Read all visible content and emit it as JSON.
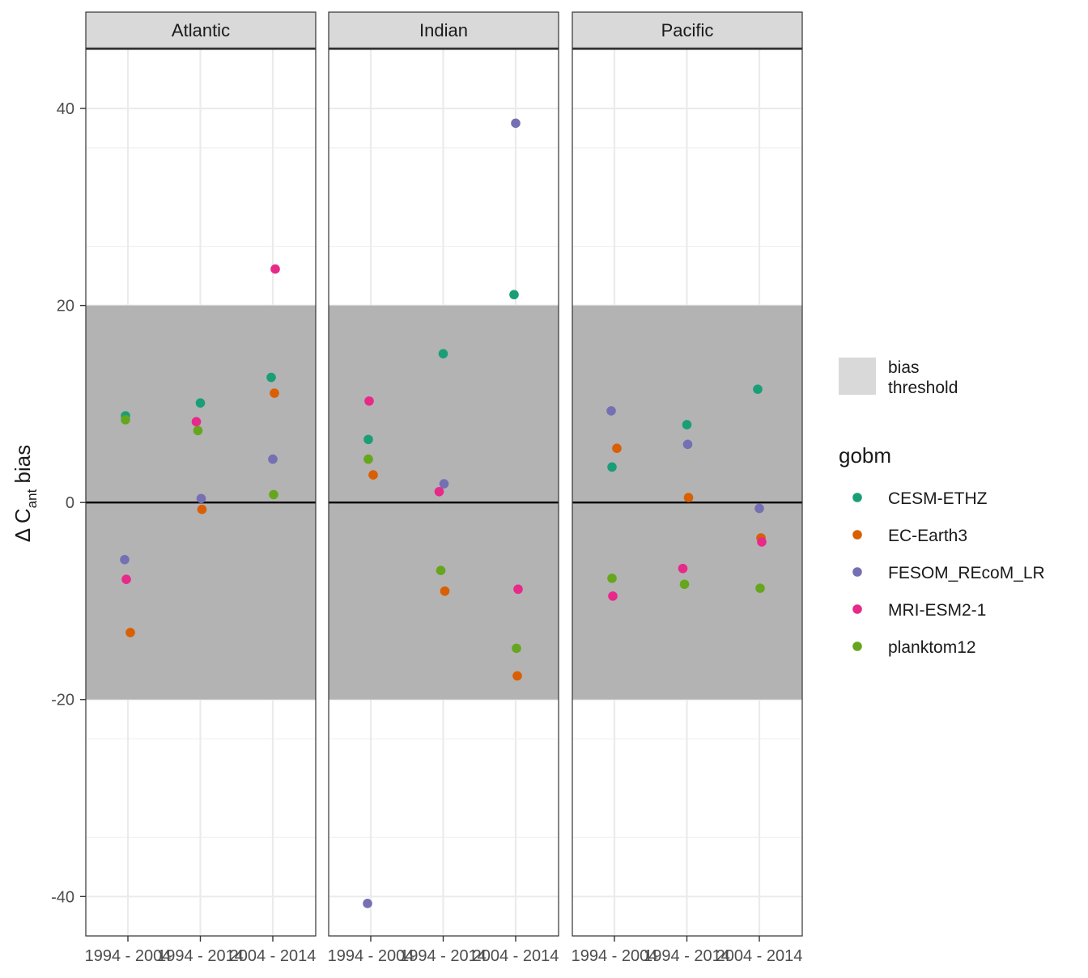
{
  "chart_data": {
    "type": "scatter",
    "facets": [
      "Atlantic",
      "Indian",
      "Pacific"
    ],
    "categories": [
      "1994 - 2004",
      "1994 - 2014",
      "2004 - 2014"
    ],
    "ylabel": {
      "prefix": "Δ C",
      "subscript": "ant",
      "suffix": " bias"
    },
    "ylim": [
      -44,
      46
    ],
    "yticks": [
      -40,
      -20,
      0,
      20,
      40
    ],
    "grid": true,
    "bias_threshold": 20,
    "legend": {
      "placement": "right",
      "threshold_label_lines": [
        "bias",
        "threshold"
      ],
      "title": "gobm"
    },
    "series": [
      {
        "name": "CESM-ETHZ",
        "color": "#1B9E77",
        "values": {
          "Atlantic": [
            8.8,
            10.1,
            12.7
          ],
          "Indian": [
            6.4,
            15.1,
            21.1
          ],
          "Pacific": [
            3.6,
            7.9,
            11.5
          ]
        }
      },
      {
        "name": "EC-Earth3",
        "color": "#D95F02",
        "values": {
          "Atlantic": [
            -13.2,
            -0.7,
            11.1
          ],
          "Indian": [
            2.8,
            -9.0,
            -17.6
          ],
          "Pacific": [
            5.5,
            0.5,
            -3.6
          ]
        }
      },
      {
        "name": "FESOM_REcoM_LR",
        "color": "#7570B3",
        "values": {
          "Atlantic": [
            -5.8,
            0.4,
            4.4
          ],
          "Indian": [
            -40.7,
            1.9,
            38.5
          ],
          "Pacific": [
            9.3,
            5.9,
            -0.6
          ]
        }
      },
      {
        "name": "MRI-ESM2-1",
        "color": "#E7298A",
        "values": {
          "Atlantic": [
            -7.8,
            8.2,
            23.7
          ],
          "Indian": [
            10.3,
            1.1,
            -8.8
          ],
          "Pacific": [
            -9.5,
            -6.7,
            -4.0
          ]
        }
      },
      {
        "name": "planktom12",
        "color": "#66A61E",
        "values": {
          "Atlantic": [
            8.4,
            7.3,
            0.8
          ],
          "Indian": [
            4.4,
            -6.9,
            -14.8
          ],
          "Pacific": [
            -7.7,
            -8.3,
            -8.7
          ]
        }
      }
    ]
  }
}
